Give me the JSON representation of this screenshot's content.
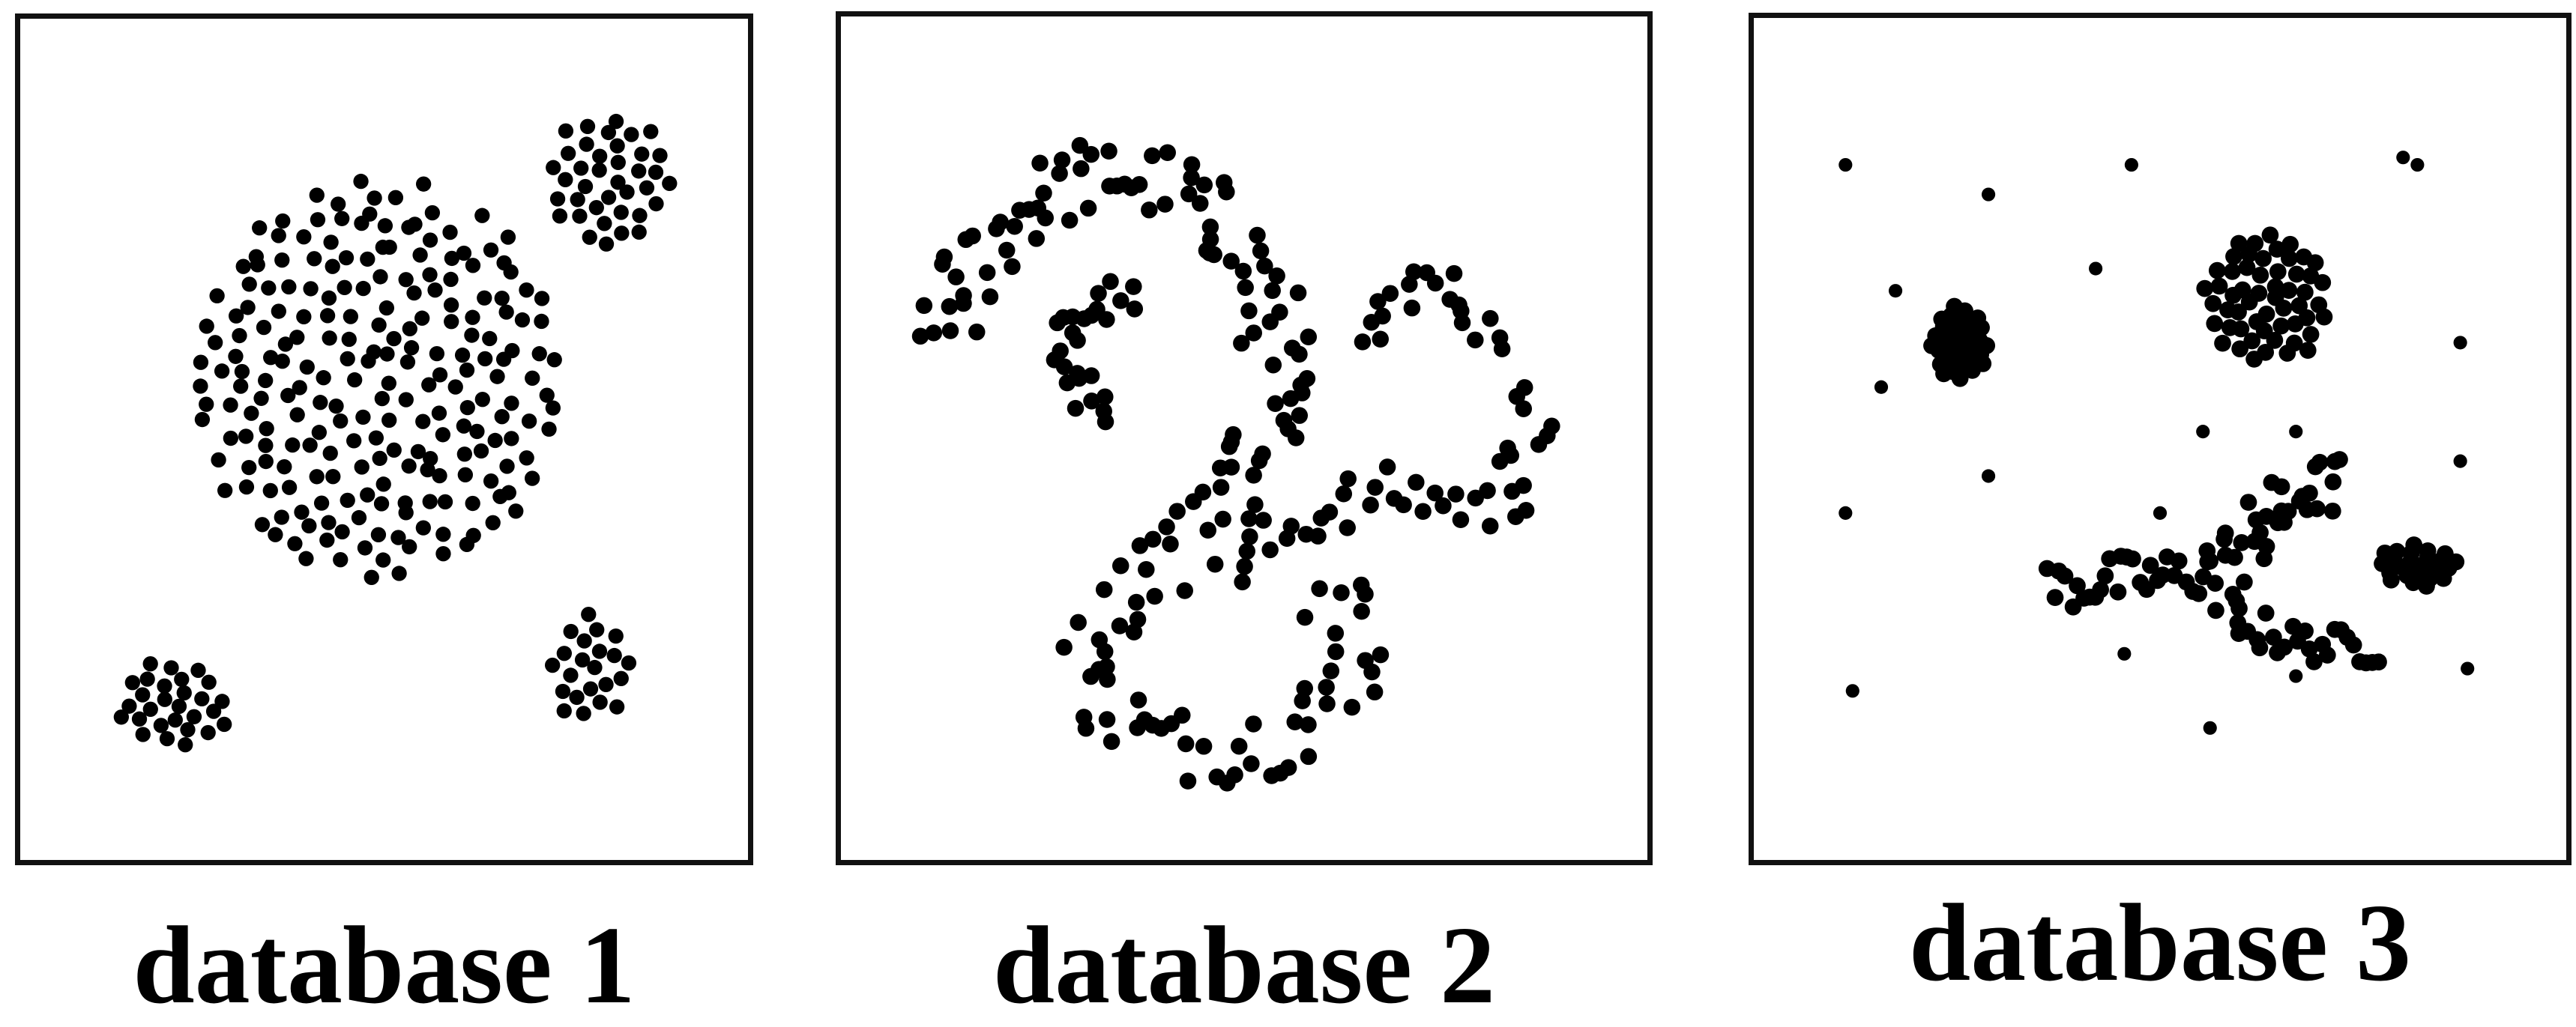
{
  "chart_data": [
    {
      "type": "scatter",
      "title": "database 1",
      "xlim": [
        0,
        100
      ],
      "ylim": [
        0,
        100
      ],
      "grid": false,
      "point_color": "#000000",
      "clusters": [
        {
          "shape": "disc",
          "center": [
            49,
            58
          ],
          "radius": [
            29,
            27
          ],
          "points": 220
        },
        {
          "shape": "disc",
          "center": [
            85,
            85
          ],
          "radius": [
            10,
            9
          ],
          "points": 38
        },
        {
          "shape": "disc",
          "center": [
            82,
            19
          ],
          "radius": [
            6.5,
            7.5
          ],
          "points": 22
        },
        {
          "shape": "disc",
          "center": [
            17,
            14
          ],
          "radius": [
            9,
            6
          ],
          "points": 28
        }
      ],
      "noise_points": []
    },
    {
      "type": "scatter",
      "title": "database 2",
      "xlim": [
        0,
        100
      ],
      "ylim": [
        0,
        100
      ],
      "grid": false,
      "point_color": "#000000",
      "clusters": [
        {
          "shape": "curve",
          "path": [
            [
              8,
              62
            ],
            [
              12,
              74
            ],
            [
              20,
              82
            ],
            [
              30,
              86
            ],
            [
              40,
              84
            ],
            [
              48,
              78
            ],
            [
              53,
              70
            ],
            [
              55,
              60
            ],
            [
              53,
              48
            ],
            [
              47,
              40
            ]
          ],
          "width": 5,
          "points": 95
        },
        {
          "shape": "curve",
          "path": [
            [
              31,
              52
            ],
            [
              25,
              57
            ],
            [
              24,
              65
            ],
            [
              29,
              69
            ],
            [
              35,
              67
            ]
          ],
          "width": 3.5,
          "points": 26
        },
        {
          "shape": "curve",
          "path": [
            [
              47,
              40
            ],
            [
              40,
              33
            ],
            [
              31,
              26
            ],
            [
              28,
              17
            ],
            [
              35,
              10
            ],
            [
              45,
              8
            ],
            [
              56,
              10
            ],
            [
              64,
              16
            ],
            [
              66,
              24
            ],
            [
              60,
              30
            ]
          ],
          "width": 5,
          "points": 70
        },
        {
          "shape": "curve",
          "path": [
            [
              48,
              32
            ],
            [
              57,
              38
            ],
            [
              68,
              43
            ],
            [
              77,
              42
            ],
            [
              86,
              40
            ],
            [
              90,
              48
            ],
            [
              92,
              57
            ]
          ],
          "width": 3.5,
          "points": 42
        },
        {
          "shape": "curve",
          "path": [
            [
              67,
              62
            ],
            [
              70,
              68
            ],
            [
              76,
              72
            ],
            [
              82,
              68
            ],
            [
              86,
              61
            ]
          ],
          "width": 2.5,
          "points": 20
        }
      ],
      "noise_points": []
    },
    {
      "type": "scatter",
      "title": "database 3",
      "xlim": [
        0,
        100
      ],
      "ylim": [
        0,
        100
      ],
      "grid": false,
      "point_color": "#000000",
      "clusters": [
        {
          "shape": "disc",
          "center": [
            65,
            69
          ],
          "radius": [
            9,
            9
          ],
          "points": 55
        },
        {
          "shape": "disc",
          "center": [
            22,
            63
          ],
          "radius": [
            4,
            5
          ],
          "points": 42
        },
        {
          "shape": "curve",
          "path": [
            [
              34,
              30
            ],
            [
              46,
              31
            ],
            [
              58,
              32
            ]
          ],
          "width": 3.5,
          "points": 30
        },
        {
          "shape": "curve",
          "path": [
            [
              58,
              32
            ],
            [
              64,
              38
            ],
            [
              70,
              43
            ],
            [
              76,
              44
            ]
          ],
          "width": 4,
          "points": 32
        },
        {
          "shape": "curve",
          "path": [
            [
              58,
              28
            ],
            [
              66,
              23
            ],
            [
              74,
              22
            ],
            [
              81,
              22
            ]
          ],
          "width": 2.5,
          "points": 28
        },
        {
          "shape": "disc",
          "center": [
            86,
            33
          ],
          "radius": [
            6,
            3
          ],
          "points": 24
        }
      ],
      "noise_points": [
        [
          6,
          87
        ],
        [
          13,
          70
        ],
        [
          11,
          57
        ],
        [
          6,
          40
        ],
        [
          7,
          16
        ],
        [
          26,
          83
        ],
        [
          26,
          45
        ],
        [
          41,
          73
        ],
        [
          46,
          87
        ],
        [
          50,
          40
        ],
        [
          45,
          21
        ],
        [
          56,
          51
        ],
        [
          57,
          11
        ],
        [
          69,
          51
        ],
        [
          69,
          18
        ],
        [
          84,
          88
        ],
        [
          86,
          87
        ],
        [
          92,
          63
        ],
        [
          92,
          47
        ],
        [
          93,
          19
        ]
      ]
    }
  ]
}
